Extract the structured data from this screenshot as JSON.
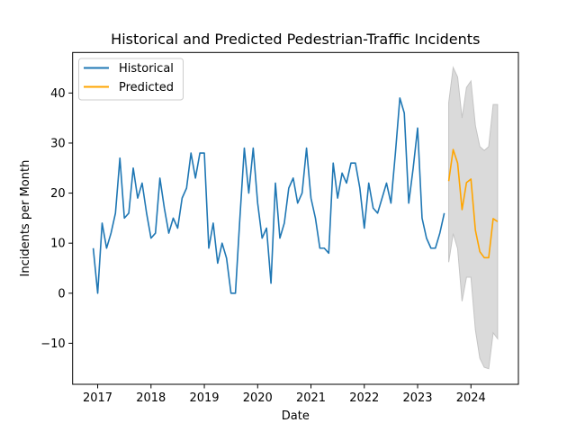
{
  "chart_data": {
    "type": "line",
    "title": "Historical and Predicted Pedestrian-Traffic Incidents",
    "xlabel": "Date",
    "ylabel": "Incidents per Month",
    "xlim": [
      2016.53,
      2024.89
    ],
    "ylim": [
      -18.2,
      48.1
    ],
    "x_ticks": [
      2017,
      2018,
      2019,
      2020,
      2021,
      2022,
      2023,
      2024
    ],
    "x_tick_labels": [
      "2017",
      "2018",
      "2019",
      "2020",
      "2021",
      "2022",
      "2023",
      "2024"
    ],
    "y_ticks": [
      -10,
      0,
      10,
      20,
      30,
      40
    ],
    "y_tick_labels": [
      "−10",
      "0",
      "10",
      "20",
      "30",
      "40"
    ],
    "grid": false,
    "legend_position": "top-left",
    "legend": [
      "Historical",
      "Predicted"
    ],
    "series": [
      {
        "name": "Historical",
        "color": "#1f77b4",
        "start": "2016-12",
        "frequency": "monthly",
        "values": [
          9,
          0,
          14,
          9,
          12,
          16,
          27,
          15,
          16,
          25,
          19,
          22,
          16,
          11,
          12,
          23,
          17,
          12,
          15,
          13,
          19,
          21,
          28,
          23,
          28,
          28,
          9,
          14,
          6,
          10,
          7,
          0,
          0,
          15,
          29,
          20,
          29,
          18,
          11,
          13,
          2,
          22,
          11,
          14,
          21,
          23,
          18,
          20,
          29,
          19,
          15,
          9,
          9,
          8,
          26,
          19,
          24,
          22,
          26,
          26,
          21,
          13,
          22,
          17,
          16,
          19,
          22,
          18,
          28,
          39,
          36,
          18,
          25,
          33,
          15,
          11,
          9,
          9,
          12,
          16
        ]
      },
      {
        "name": "Predicted",
        "color": "#ffa500",
        "start": "2023-08",
        "frequency": "monthly",
        "values": [
          22.4,
          28.7,
          26.0,
          16.7,
          22.1,
          22.8,
          12.6,
          8.3,
          7.1,
          7.1,
          14.9,
          14.3
        ],
        "interval_upper": [
          38.1,
          45.1,
          43.2,
          35.0,
          41.1,
          42.4,
          33.5,
          29.3,
          28.5,
          29.3,
          37.7,
          37.7
        ],
        "interval_lower": [
          6.2,
          11.9,
          8.9,
          -1.6,
          3.2,
          3.2,
          -7.3,
          -13.0,
          -14.8,
          -15.1,
          -7.9,
          -9.1
        ]
      }
    ],
    "interval_color": "#d3d3d3"
  }
}
